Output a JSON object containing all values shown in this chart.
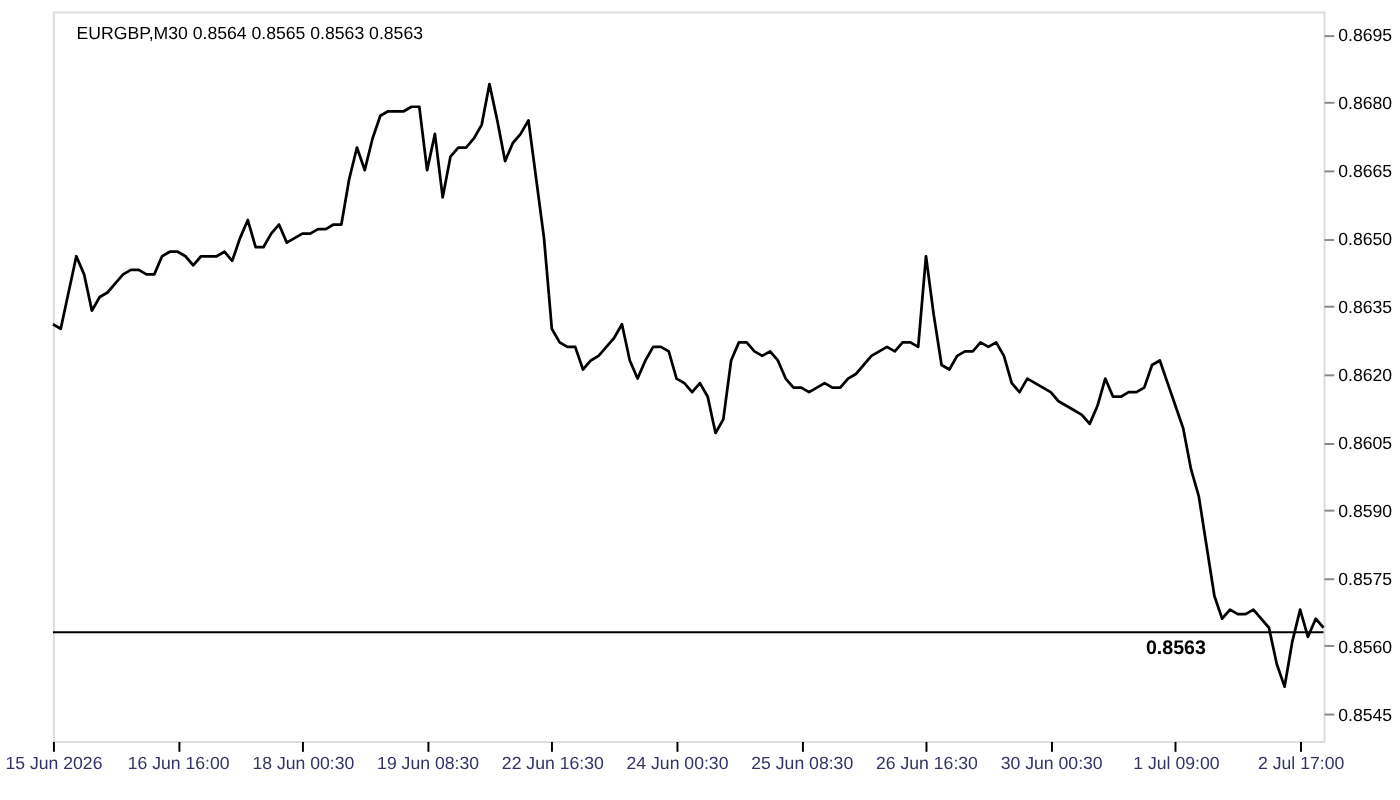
{
  "chart_data": {
    "type": "line",
    "title": "EURGBP,M30  0.8564 0.8565 0.8563 0.8563",
    "categories": [
      "15 Jun 2026",
      null,
      null,
      null,
      null,
      null,
      null,
      null,
      null,
      null,
      null,
      null,
      null,
      null,
      null,
      null,
      "16 Jun 16:00",
      null,
      null,
      null,
      null,
      null,
      null,
      null,
      null,
      null,
      null,
      null,
      null,
      null,
      null,
      null,
      "18 Jun 00:30",
      null,
      null,
      null,
      null,
      null,
      null,
      null,
      null,
      null,
      null,
      null,
      null,
      null,
      null,
      null,
      "19 Jun 08:30",
      null,
      null,
      null,
      null,
      null,
      null,
      null,
      null,
      null,
      null,
      null,
      null,
      null,
      null,
      null,
      "22 Jun 16:30",
      null,
      null,
      null,
      null,
      null,
      null,
      null,
      null,
      null,
      null,
      null,
      null,
      null,
      null,
      null,
      "24 Jun 00:30",
      null,
      null,
      null,
      null,
      null,
      null,
      null,
      null,
      null,
      null,
      null,
      null,
      null,
      null,
      null,
      "25 Jun 08:30",
      null,
      null,
      null,
      null,
      null,
      null,
      null,
      null,
      null,
      null,
      null,
      null,
      null,
      null,
      null,
      "26 Jun 16:30",
      null,
      null,
      null,
      null,
      null,
      null,
      null,
      null,
      null,
      null,
      null,
      null,
      null,
      null,
      null,
      "30 Jun 00:30",
      null,
      null,
      null,
      null,
      null,
      null,
      null,
      null,
      null,
      null,
      null,
      null,
      null,
      null,
      null,
      "1 Jul 09:00",
      null,
      null,
      null,
      null,
      null,
      null,
      null,
      null,
      null,
      null,
      null,
      null,
      null,
      null,
      null,
      "2 Jul 17:00",
      null,
      null,
      null
    ],
    "series": [
      {
        "color": "#000000",
        "values": [
          0.8631,
          0.863,
          0.8638,
          0.8646,
          0.8642,
          0.8634,
          0.8637,
          0.8638,
          0.864,
          0.8642,
          0.8643,
          0.8643,
          0.8642,
          0.8642,
          0.8646,
          0.8647,
          0.8647,
          0.8646,
          0.8644,
          0.8646,
          0.8646,
          0.8646,
          0.8647,
          0.8645,
          0.865,
          0.8654,
          0.8648,
          0.8648,
          0.8651,
          0.8653,
          0.8649,
          0.865,
          0.8651,
          0.8651,
          0.8652,
          0.8652,
          0.8653,
          0.8653,
          0.8663,
          0.867,
          0.8665,
          0.8672,
          0.8677,
          0.8678,
          0.8678,
          0.8678,
          0.8679,
          0.8679,
          0.8665,
          0.8673,
          0.8659,
          0.8668,
          0.867,
          0.867,
          0.8672,
          0.8675,
          0.8684,
          0.8676,
          0.8667,
          0.8671,
          0.8673,
          0.8676,
          0.8663,
          0.865,
          0.863,
          0.8627,
          0.8626,
          0.8626,
          0.8621,
          0.8623,
          0.8624,
          0.8626,
          0.8628,
          0.8631,
          0.8623,
          0.8619,
          0.8623,
          0.8626,
          0.8626,
          0.8625,
          0.8619,
          0.8618,
          0.8616,
          0.8618,
          0.8615,
          0.8607,
          0.861,
          0.8623,
          0.8627,
          0.8627,
          0.8625,
          0.8624,
          0.8625,
          0.8623,
          0.8619,
          0.8617,
          0.8617,
          0.8616,
          0.8617,
          0.8618,
          0.8617,
          0.8617,
          0.8619,
          0.862,
          0.8622,
          0.8624,
          0.8625,
          0.8626,
          0.8625,
          0.8627,
          0.8627,
          0.8626,
          0.8646,
          0.8633,
          0.8622,
          0.8621,
          0.8624,
          0.8625,
          0.8625,
          0.8627,
          0.8626,
          0.8627,
          0.8624,
          0.8618,
          0.8616,
          0.8619,
          0.8618,
          0.8617,
          0.8616,
          0.8614,
          0.8613,
          0.8612,
          0.8611,
          0.8609,
          0.8613,
          0.8619,
          0.8615,
          0.8615,
          0.8616,
          0.8616,
          0.8617,
          0.8622,
          0.8623,
          0.8618,
          0.8613,
          0.8608,
          0.8599,
          0.8593,
          0.8582,
          0.8571,
          0.8566,
          0.8568,
          0.8567,
          0.8567,
          0.8568,
          0.8566,
          0.8564,
          0.8556,
          0.8551,
          0.8561,
          0.8568,
          0.8562,
          0.8566,
          0.8564
        ]
      }
    ],
    "ylim": [
      0.8539,
      0.87
    ],
    "yticks": [
      {
        "value": 0.8545,
        "label": "0.8545"
      },
      {
        "value": 0.856,
        "label": "0.8560"
      },
      {
        "value": 0.8575,
        "label": "0.8575"
      },
      {
        "value": 0.859,
        "label": "0.8590"
      },
      {
        "value": 0.8605,
        "label": "0.8605"
      },
      {
        "value": 0.862,
        "label": "0.8620"
      },
      {
        "value": 0.8635,
        "label": "0.8635"
      },
      {
        "value": 0.865,
        "label": "0.8650"
      },
      {
        "value": 0.8665,
        "label": "0.8665"
      },
      {
        "value": 0.868,
        "label": "0.8680"
      },
      {
        "value": 0.8695,
        "label": "0.8695"
      }
    ],
    "ref_lines": [
      {
        "axis": "y",
        "value": 0.8563,
        "label": "0.8563",
        "color": "#000000"
      }
    ],
    "grid": false,
    "marker": "none",
    "line_style": "solid"
  }
}
